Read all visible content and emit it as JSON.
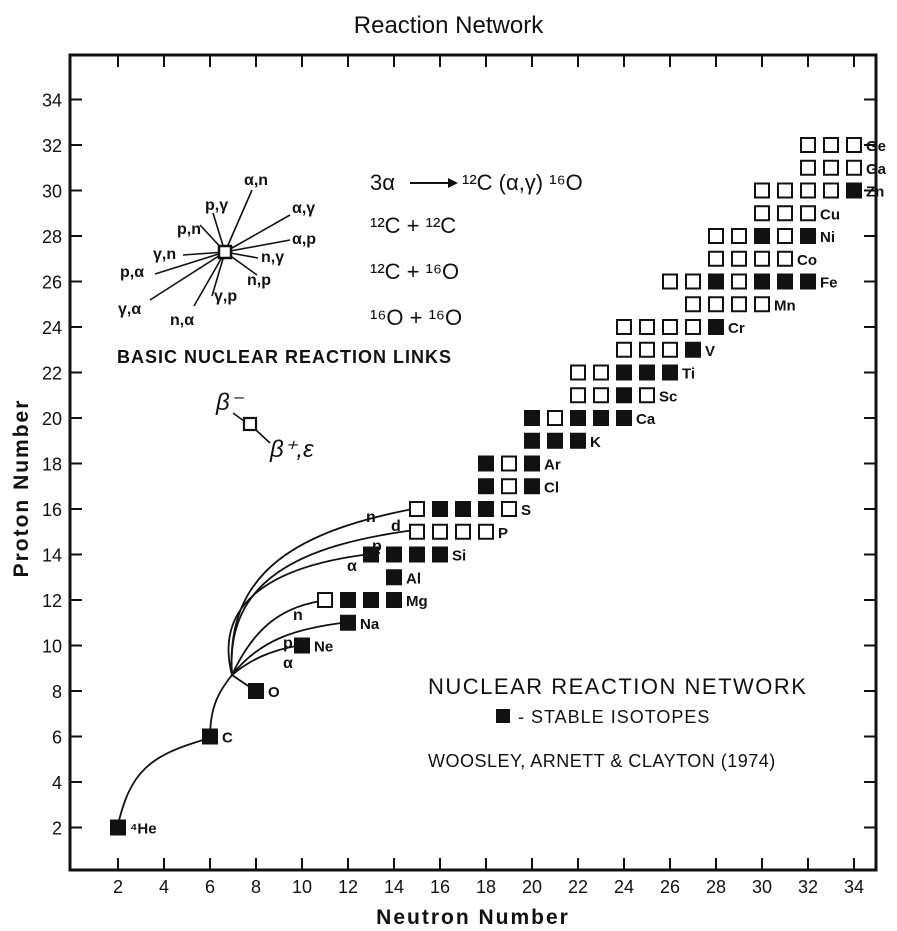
{
  "title": "Reaction Network",
  "x_axis": {
    "label": "Neutron Number",
    "ticks": [
      2,
      4,
      6,
      8,
      10,
      12,
      14,
      16,
      18,
      20,
      22,
      24,
      26,
      28,
      30,
      32,
      34
    ],
    "range": [
      0,
      35
    ]
  },
  "y_axis": {
    "label": "Proton Number",
    "ticks": [
      2,
      4,
      6,
      8,
      10,
      12,
      14,
      16,
      18,
      20,
      22,
      24,
      26,
      28,
      30,
      32,
      34
    ],
    "range": [
      0,
      35
    ]
  },
  "network_title": "NUCLEAR REACTION NETWORK",
  "stable_legend": "- STABLE ISOTOPES",
  "credit": "WOOSLEY, ARNETT & CLAYTON (1974)",
  "links_title": "BASIC NUCLEAR REACTION LINKS",
  "reaction_links": [
    "α,n",
    "p,γ",
    "α,γ",
    "p,n",
    "α,p",
    "γ,n",
    "n,γ",
    "p,α",
    "n,p",
    "γ,α",
    "γ,p",
    "n,α"
  ],
  "beta_minus": "β⁻",
  "beta_plus": "β⁺,ε",
  "reactions": [
    {
      "lhs": "3α",
      "rhs": "¹²C (α,γ) ¹⁶O"
    },
    {
      "lhs": "¹²C + ¹²C"
    },
    {
      "lhs": "¹²C + ¹⁶O"
    },
    {
      "lhs": "¹⁶O + ¹⁶O"
    }
  ],
  "path_labels": [
    "n",
    "d",
    "p",
    "α",
    "n",
    "p",
    "α"
  ],
  "elements": [
    {
      "z": 2,
      "label": "⁴He",
      "cells": [
        [
          2,
          1
        ]
      ]
    },
    {
      "z": 6,
      "label": "C",
      "cells": [
        [
          6,
          1
        ]
      ]
    },
    {
      "z": 8,
      "label": "O",
      "cells": [
        [
          8,
          1
        ]
      ]
    },
    {
      "z": 10,
      "label": "Ne",
      "cells": [
        [
          10,
          1
        ]
      ]
    },
    {
      "z": 11,
      "label": "Na",
      "cells": [
        [
          12,
          1
        ]
      ]
    },
    {
      "z": 12,
      "label": "Mg",
      "cells": [
        [
          11,
          0
        ],
        [
          12,
          1
        ],
        [
          13,
          1
        ],
        [
          14,
          1
        ]
      ]
    },
    {
      "z": 13,
      "label": "Al",
      "cells": [
        [
          14,
          1
        ]
      ]
    },
    {
      "z": 14,
      "label": "Si",
      "cells": [
        [
          13,
          1
        ],
        [
          14,
          1
        ],
        [
          15,
          1
        ],
        [
          16,
          1
        ]
      ]
    },
    {
      "z": 15,
      "label": "P",
      "cells": [
        [
          15,
          0
        ],
        [
          16,
          0
        ],
        [
          17,
          0
        ],
        [
          18,
          0
        ]
      ]
    },
    {
      "z": 16,
      "label": "S",
      "cells": [
        [
          15,
          0
        ],
        [
          16,
          1
        ],
        [
          17,
          1
        ],
        [
          18,
          1
        ],
        [
          19,
          0
        ]
      ]
    },
    {
      "z": 17,
      "label": "Cl",
      "cells": [
        [
          18,
          1
        ],
        [
          19,
          0
        ],
        [
          20,
          1
        ]
      ]
    },
    {
      "z": 18,
      "label": "Ar",
      "cells": [
        [
          18,
          1
        ],
        [
          19,
          0
        ],
        [
          20,
          1
        ]
      ]
    },
    {
      "z": 19,
      "label": "K",
      "cells": [
        [
          20,
          1
        ],
        [
          21,
          1
        ],
        [
          22,
          1
        ]
      ]
    },
    {
      "z": 20,
      "label": "Ca",
      "cells": [
        [
          20,
          1
        ],
        [
          21,
          0
        ],
        [
          22,
          1
        ],
        [
          23,
          1
        ],
        [
          24,
          1
        ]
      ]
    },
    {
      "z": 21,
      "label": "Sc",
      "cells": [
        [
          22,
          0
        ],
        [
          23,
          0
        ],
        [
          24,
          1
        ],
        [
          25,
          0
        ]
      ]
    },
    {
      "z": 22,
      "label": "Ti",
      "cells": [
        [
          22,
          0
        ],
        [
          23,
          0
        ],
        [
          24,
          1
        ],
        [
          25,
          1
        ],
        [
          26,
          1
        ]
      ]
    },
    {
      "z": 23,
      "label": "V",
      "cells": [
        [
          24,
          0
        ],
        [
          25,
          0
        ],
        [
          26,
          0
        ],
        [
          27,
          1
        ]
      ]
    },
    {
      "z": 24,
      "label": "Cr",
      "cells": [
        [
          24,
          0
        ],
        [
          25,
          0
        ],
        [
          26,
          0
        ],
        [
          27,
          0
        ],
        [
          28,
          1
        ]
      ]
    },
    {
      "z": 25,
      "label": "Mn",
      "cells": [
        [
          27,
          0
        ],
        [
          28,
          0
        ],
        [
          29,
          0
        ],
        [
          30,
          0
        ]
      ]
    },
    {
      "z": 26,
      "label": "Fe",
      "cells": [
        [
          26,
          0
        ],
        [
          27,
          0
        ],
        [
          28,
          1
        ],
        [
          29,
          0
        ],
        [
          30,
          1
        ],
        [
          31,
          1
        ],
        [
          32,
          1
        ]
      ]
    },
    {
      "z": 27,
      "label": "Co",
      "cells": [
        [
          28,
          0
        ],
        [
          29,
          0
        ],
        [
          30,
          0
        ],
        [
          31,
          0
        ]
      ]
    },
    {
      "z": 28,
      "label": "Ni",
      "cells": [
        [
          28,
          0
        ],
        [
          29,
          0
        ],
        [
          30,
          1
        ],
        [
          31,
          0
        ],
        [
          32,
          1
        ]
      ]
    },
    {
      "z": 29,
      "label": "Cu",
      "cells": [
        [
          30,
          0
        ],
        [
          31,
          0
        ],
        [
          32,
          0
        ]
      ]
    },
    {
      "z": 30,
      "label": "Zn",
      "cells": [
        [
          30,
          0
        ],
        [
          31,
          0
        ],
        [
          32,
          0
        ],
        [
          33,
          0
        ],
        [
          34,
          1
        ]
      ]
    },
    {
      "z": 31,
      "label": "Ga",
      "cells": [
        [
          32,
          0
        ],
        [
          33,
          0
        ],
        [
          34,
          0
        ]
      ]
    },
    {
      "z": 32,
      "label": "Ge",
      "cells": [
        [
          32,
          0
        ],
        [
          33,
          0
        ],
        [
          34,
          0
        ]
      ]
    }
  ]
}
